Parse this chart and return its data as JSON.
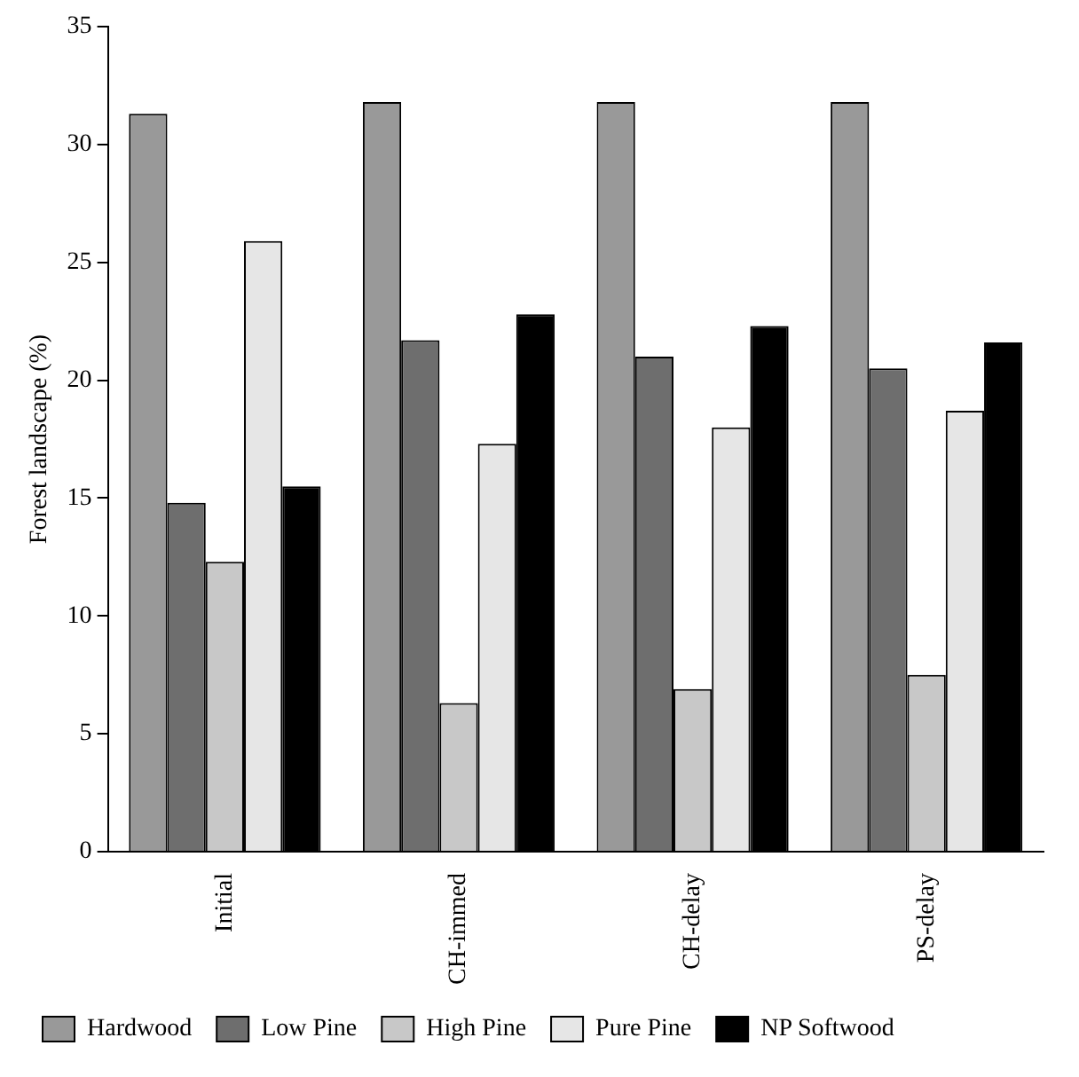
{
  "chart_data": {
    "type": "bar",
    "ylabel": "Forest landscape (%)",
    "categories": [
      "Initial",
      "CH-immed",
      "CH-delay",
      "PS-delay"
    ],
    "series": [
      {
        "name": "Hardwood",
        "color": "#999999",
        "values": [
          31.3,
          31.8,
          31.8,
          31.8
        ]
      },
      {
        "name": "Low Pine",
        "color": "#6e6e6e",
        "values": [
          14.8,
          21.7,
          21.0,
          20.5
        ]
      },
      {
        "name": "High Pine",
        "color": "#c8c8c8",
        "values": [
          12.3,
          6.3,
          6.9,
          7.5
        ]
      },
      {
        "name": "Pure Pine",
        "color": "#e6e6e6",
        "values": [
          25.9,
          17.3,
          18.0,
          18.7
        ]
      },
      {
        "name": "NP Softwood",
        "color": "#000000",
        "values": [
          15.5,
          22.8,
          22.3,
          21.6
        ]
      }
    ],
    "ylim": [
      0,
      35
    ],
    "yticks": [
      0,
      5,
      10,
      15,
      20,
      25,
      30,
      35
    ],
    "grid": false,
    "legend": "bottom"
  }
}
